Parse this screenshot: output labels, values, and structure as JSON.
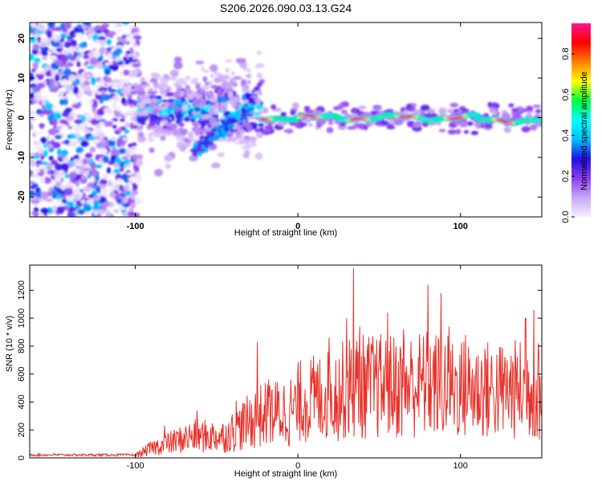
{
  "chart_data": [
    {
      "type": "heatmap",
      "title": "S206.2026.090.03.13.G24",
      "xlabel": "Height of straight line (km)",
      "ylabel": "Frequency (Hz)",
      "xlim": [
        -165,
        150
      ],
      "ylim": [
        -25,
        24
      ],
      "xticks": [
        -100,
        0,
        100
      ],
      "yticks": [
        -20,
        -10,
        0,
        10,
        20
      ],
      "colorbar": {
        "label": "Normalized spectral amplitude",
        "range": [
          0,
          0.95
        ],
        "ticks": [
          0.0,
          0.2,
          0.4,
          0.6,
          0.8
        ],
        "tick_labels": [
          "0.0",
          "0.2",
          "0.4",
          "0.6",
          "0.8"
        ],
        "colors": [
          "#f4efff",
          "#c8a8f5",
          "#8a3df0",
          "#1f10e8",
          "#00bfff",
          "#00ffff",
          "#00ff40",
          "#ffff00",
          "#ff8000",
          "#ff0000",
          "#ff1890"
        ]
      },
      "regions": [
        {
          "name": "noise",
          "x": [
            -165,
            -98
          ],
          "y": [
            -25,
            24
          ],
          "amplitude": 0.15
        },
        {
          "name": "onset",
          "x": [
            -98,
            -22
          ],
          "center_hz": 2,
          "amplitude": 0.45
        },
        {
          "name": "descending-branch",
          "x": [
            -65,
            -28
          ],
          "start_hz": -9,
          "end_hz": 3,
          "amplitude": 0.35
        },
        {
          "name": "signal",
          "x": [
            -22,
            150
          ],
          "center_hz": 0,
          "amplitude": 0.9
        }
      ]
    },
    {
      "type": "line",
      "xlabel": "Height of straight line (km)",
      "ylabel": "SNR (10 * v/v)",
      "xlim": [
        -165,
        150
      ],
      "ylim": [
        0,
        1380
      ],
      "xticks": [
        -100,
        0,
        100
      ],
      "yticks": [
        0,
        200,
        400,
        600,
        800,
        1000,
        1200
      ],
      "color": "#e8312a",
      "envelope": [
        {
          "x": -165,
          "y": 25
        },
        {
          "x": -100,
          "y": 25
        },
        {
          "x": -90,
          "y": 100
        },
        {
          "x": -65,
          "y": 220
        },
        {
          "x": -45,
          "y": 220
        },
        {
          "x": -25,
          "y": 420
        },
        {
          "x": 0,
          "y": 500
        },
        {
          "x": 20,
          "y": 560
        },
        {
          "x": 35,
          "y": 640
        },
        {
          "x": 60,
          "y": 640
        },
        {
          "x": 80,
          "y": 660
        },
        {
          "x": 100,
          "y": 620
        },
        {
          "x": 125,
          "y": 600
        },
        {
          "x": 145,
          "y": 620
        },
        {
          "x": 150,
          "y": 500
        }
      ],
      "peaks": [
        {
          "x": -82,
          "y": 230
        },
        {
          "x": -62,
          "y": 340
        },
        {
          "x": -38,
          "y": 410
        },
        {
          "x": -25,
          "y": 830
        },
        {
          "x": -18,
          "y": 560
        },
        {
          "x": 19,
          "y": 860
        },
        {
          "x": 30,
          "y": 1000
        },
        {
          "x": 34,
          "y": 1360
        },
        {
          "x": 38,
          "y": 940
        },
        {
          "x": 55,
          "y": 1040
        },
        {
          "x": 65,
          "y": 920
        },
        {
          "x": 80,
          "y": 1240
        },
        {
          "x": 88,
          "y": 1180
        },
        {
          "x": 93,
          "y": 940
        },
        {
          "x": 103,
          "y": 880
        },
        {
          "x": 115,
          "y": 780
        },
        {
          "x": 140,
          "y": 1000
        },
        {
          "x": 145,
          "y": 1060
        },
        {
          "x": 148,
          "y": 820
        }
      ]
    }
  ]
}
